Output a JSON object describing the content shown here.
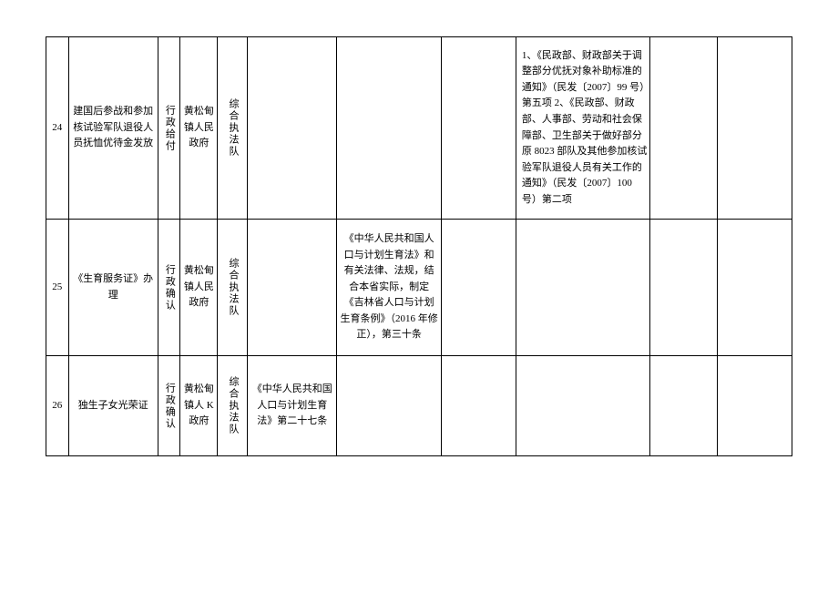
{
  "table": {
    "rows": [
      {
        "idx": "24",
        "name": "建国后参战和参加核试验军队退役人员抚恤优待金发放",
        "type": "行政给付",
        "org": "黄松甸镇人民政府",
        "dept": "综合执法队",
        "law1": "",
        "law2": "",
        "law3": "",
        "law4": "1、《民政部、财政部关于调整部分优抚对象补助标准的通知》（民发〔2007〕99 号）第五项  2、《民政部、财政部、人事部、劳动和社会保障部、卫生部关于做好部分原 8023 部队及其他参加核试验军队退役人员有关工作的通知》（民发〔2007〕100 号）第二项",
        "rem": "",
        "rem2": ""
      },
      {
        "idx": "25",
        "name": "《生育服务证》办理",
        "type": "行政确认",
        "org": "黄松甸镇人民政府",
        "dept": "综合执法队",
        "law1": "",
        "law2": "《中华人民共和国人口与计划生育法》和有关法律、法规，结合本省实际，制定《吉林省人口与计划生育条例》（2016 年修正），第三十条",
        "law3": "",
        "law4": "",
        "rem": "",
        "rem2": ""
      },
      {
        "idx": "26",
        "name": "独生子女光荣证",
        "type": "行政确认",
        "org": "黄松甸镇人 K 政府",
        "dept": "综合执法队",
        "law1": "《中华人民共和国人口与计划生育法》第二十七条",
        "law2": "",
        "law3": "",
        "law4": "",
        "rem": "",
        "rem2": ""
      }
    ]
  }
}
